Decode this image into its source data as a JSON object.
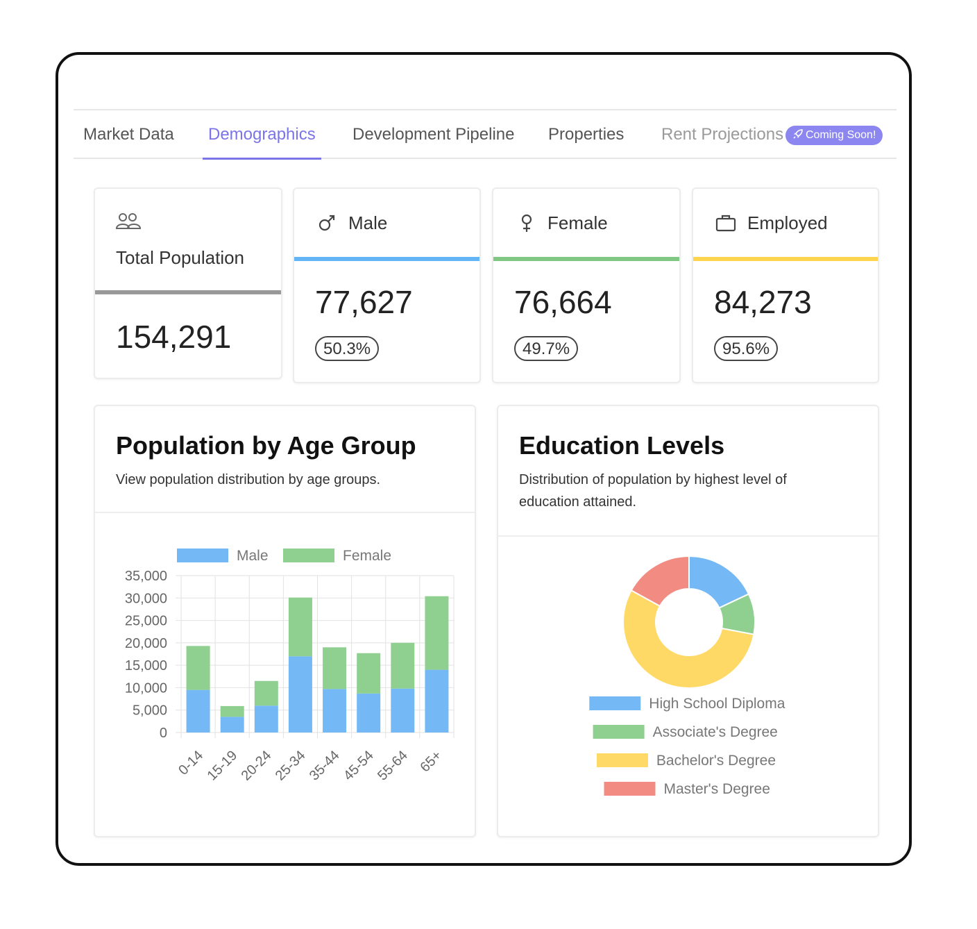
{
  "tabs": [
    {
      "label": "Market Data"
    },
    {
      "label": "Demographics"
    },
    {
      "label": "Development Pipeline"
    },
    {
      "label": "Properties"
    },
    {
      "label": "Rent Projections"
    }
  ],
  "coming_soon_badge": "Coming Soon!",
  "stats": {
    "total": {
      "label": "Total Population",
      "value": "154,291",
      "icon": "people-icon",
      "accent": "#999999"
    },
    "male": {
      "label": "Male",
      "value": "77,627",
      "percent": "50.3%",
      "icon": "male-symbol-icon",
      "accent": "#64b5f6"
    },
    "female": {
      "label": "Female",
      "value": "76,664",
      "percent": "49.7%",
      "icon": "female-symbol-icon",
      "accent": "#81c784"
    },
    "employed": {
      "label": "Employed",
      "value": "84,273",
      "percent": "95.6%",
      "icon": "briefcase-icon",
      "accent": "#ffd54f"
    }
  },
  "age_panel": {
    "title": "Population by Age Group",
    "subtitle": "View population distribution by age groups."
  },
  "education_panel": {
    "title": "Education Levels",
    "subtitle": "Distribution of population by highest level of education attained."
  },
  "chart_data": [
    {
      "type": "bar",
      "stacked": true,
      "categories": [
        "0-14",
        "15-19",
        "20-24",
        "25-34",
        "35-44",
        "45-54",
        "55-64",
        "65+"
      ],
      "series": [
        {
          "name": "Male",
          "color": "#74b9f5",
          "values": [
            9500,
            3500,
            6000,
            17000,
            9700,
            8700,
            9800,
            14000
          ]
        },
        {
          "name": "Female",
          "color": "#8fcf8f",
          "values": [
            9800,
            2400,
            5500,
            13100,
            9300,
            9000,
            10200,
            16400
          ]
        }
      ],
      "yticks": [
        "35,000",
        "30,000",
        "25,000",
        "20,000",
        "15,000",
        "10,000",
        "5,000",
        "0"
      ],
      "ylim": [
        0,
        35000
      ],
      "grid": true,
      "legend": "top"
    },
    {
      "type": "pie",
      "donut": true,
      "slices": [
        {
          "label": "High School Diploma",
          "color": "#74b9f5",
          "value": 18
        },
        {
          "label": "Associate's Degree",
          "color": "#8fcf8f",
          "value": 10
        },
        {
          "label": "Bachelor's Degree",
          "color": "#ffd966",
          "value": 55
        },
        {
          "label": "Master's Degree",
          "color": "#f28b82",
          "value": 17
        }
      ],
      "legend": "bottom"
    }
  ]
}
